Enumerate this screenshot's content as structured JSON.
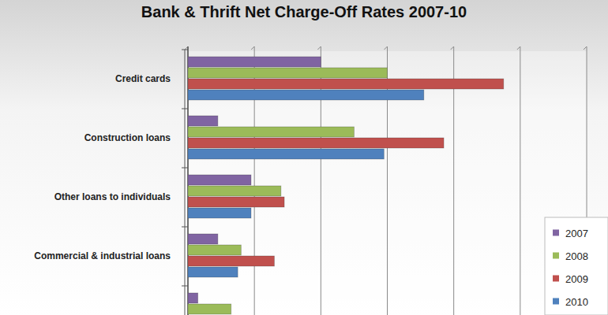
{
  "chart_data": {
    "type": "bar",
    "orientation": "horizontal",
    "title": "Bank & Thrift Net Charge-Off Rates 2007-10",
    "categories": [
      "Credit cards",
      "Construction loans",
      "Other loans to individuals",
      "Commercial & industrial loans",
      null
    ],
    "series": [
      {
        "name": "2007",
        "color": "#8064a2",
        "values": [
          4.0,
          0.9,
          1.9,
          0.9,
          0.3
        ]
      },
      {
        "name": "2008",
        "color": "#9bbb59",
        "values": [
          6.0,
          5.0,
          2.8,
          1.6,
          1.3
        ]
      },
      {
        "name": "2009",
        "color": "#c0504d",
        "values": [
          9.5,
          7.7,
          2.9,
          2.6,
          null
        ]
      },
      {
        "name": "2010",
        "color": "#4f81bd",
        "values": [
          7.1,
          5.9,
          1.9,
          1.5,
          null
        ]
      }
    ],
    "xlim": [
      0,
      12
    ],
    "xticks": [
      0,
      2,
      4,
      6,
      8,
      10,
      12
    ],
    "grid": true,
    "tick_labels": false,
    "legend": "lower right"
  }
}
